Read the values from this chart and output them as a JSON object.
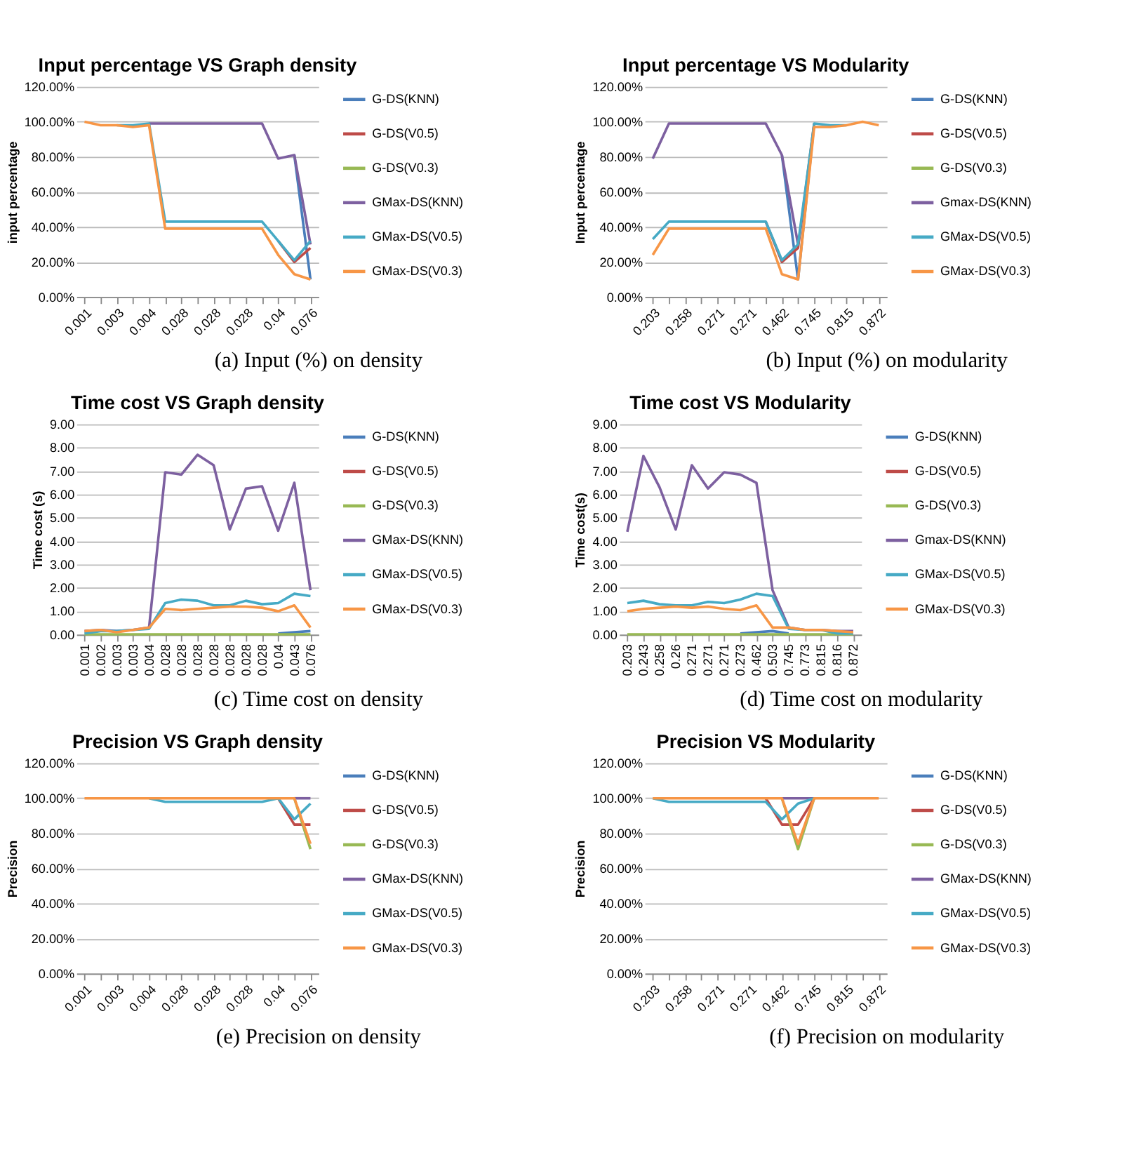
{
  "chart_data": [
    {
      "type": "line",
      "title": "Input percentage VS Graph density",
      "ylabel": "input percentage",
      "annotations": [
        "(a) Input (%) on density"
      ],
      "categories": [
        "0.001",
        null,
        "0.003",
        null,
        "0.004",
        null,
        "0.028",
        null,
        "0.028",
        null,
        "0.028",
        null,
        "0.04",
        null,
        "0.076"
      ],
      "ylim": [
        0,
        120
      ],
      "yticks": [
        {
          "value": 0,
          "label": "0.00%"
        },
        {
          "value": 20,
          "label": "20.00%"
        },
        {
          "value": 40,
          "label": "40.00%"
        },
        {
          "value": 60,
          "label": "60.00%"
        },
        {
          "value": 80,
          "label": "80.00%"
        },
        {
          "value": 100,
          "label": "100.00%"
        },
        {
          "value": 120,
          "label": "120.00%"
        }
      ],
      "grid": "y",
      "legend": "right",
      "marker": "none",
      "series": [
        {
          "name": "G-DS(KNN)",
          "color": "#4a7ebb",
          "values": [
            null,
            null,
            null,
            null,
            null,
            null,
            null,
            null,
            null,
            null,
            null,
            null,
            null,
            81,
            10
          ]
        },
        {
          "name": "G-DS(V0.5)",
          "color": "#be4b48",
          "values": [
            null,
            null,
            null,
            null,
            null,
            null,
            null,
            null,
            null,
            null,
            null,
            null,
            32,
            20,
            28
          ]
        },
        {
          "name": "G-DS(V0.3)",
          "color": "#98b954",
          "values": [
            null,
            null,
            null,
            null,
            null,
            null,
            null,
            null,
            null,
            null,
            null,
            null,
            null,
            null,
            null
          ]
        },
        {
          "name": "GMax-DS(KNN)",
          "color": "#7d60a0",
          "values": [
            null,
            null,
            null,
            null,
            99,
            99,
            99,
            99,
            99,
            99,
            99,
            99,
            79,
            81,
            30
          ]
        },
        {
          "name": "GMax-DS(V0.5)",
          "color": "#46aac5",
          "values": [
            null,
            null,
            98,
            98,
            99,
            43,
            43,
            43,
            43,
            43,
            43,
            43,
            32,
            21,
            32
          ]
        },
        {
          "name": "GMax-DS(V0.3)",
          "color": "#f79646",
          "values": [
            100,
            98,
            98,
            97,
            98,
            39,
            39,
            39,
            39,
            39,
            39,
            39,
            24,
            13,
            10
          ]
        }
      ]
    },
    {
      "type": "line",
      "title": "Input percentage VS Modularity",
      "ylabel": "Input percentage",
      "annotations": [
        "(b) Input (%) on modularity"
      ],
      "categories": [
        "0.203",
        null,
        "0.258",
        null,
        "0.271",
        null,
        "0.271",
        null,
        "0.462",
        null,
        "0.745",
        null,
        "0.815",
        null,
        "0.872"
      ],
      "ylim": [
        0,
        120
      ],
      "yticks": [
        {
          "value": 0,
          "label": "0.00%"
        },
        {
          "value": 20,
          "label": "20.00%"
        },
        {
          "value": 40,
          "label": "40.00%"
        },
        {
          "value": 60,
          "label": "60.00%"
        },
        {
          "value": 80,
          "label": "80.00%"
        },
        {
          "value": 100,
          "label": "100.00%"
        },
        {
          "value": 120,
          "label": "120.00%"
        }
      ],
      "grid": "y",
      "legend": "right",
      "marker": "none",
      "series": [
        {
          "name": "G-DS(KNN)",
          "color": "#4a7ebb",
          "values": [
            null,
            null,
            null,
            null,
            null,
            null,
            null,
            null,
            81,
            10,
            99,
            null,
            null,
            null,
            null
          ]
        },
        {
          "name": "G-DS(V0.5)",
          "color": "#be4b48",
          "values": [
            null,
            null,
            null,
            null,
            null,
            null,
            null,
            43,
            20,
            28,
            99,
            null,
            null,
            null,
            null
          ]
        },
        {
          "name": "G-DS(V0.3)",
          "color": "#98b954",
          "values": [
            null,
            null,
            null,
            null,
            null,
            null,
            null,
            null,
            null,
            null,
            null,
            null,
            null,
            null,
            null
          ]
        },
        {
          "name": "Gmax-DS(KNN)",
          "color": "#7d60a0",
          "values": [
            79,
            99,
            99,
            99,
            99,
            99,
            99,
            99,
            81,
            30,
            null,
            null,
            null,
            null,
            null
          ]
        },
        {
          "name": "GMax-DS(V0.5)",
          "color": "#46aac5",
          "values": [
            33,
            43,
            43,
            43,
            43,
            43,
            43,
            43,
            21,
            30,
            99,
            98,
            98,
            null,
            null
          ]
        },
        {
          "name": "GMax-DS(V0.3)",
          "color": "#f79646",
          "values": [
            24,
            39,
            39,
            39,
            39,
            39,
            39,
            39,
            13,
            10,
            97,
            97,
            98,
            100,
            98
          ]
        }
      ]
    },
    {
      "type": "line",
      "title": "Time cost VS Graph density",
      "ylabel": "Time cost (s)",
      "annotations": [
        "(c) Time cost on density"
      ],
      "categories": [
        "0.001",
        "0.002",
        "0.003",
        "0.003",
        "0.004",
        "0.028",
        "0.028",
        "0.028",
        "0.028",
        "0.028",
        "0.028",
        "0.028",
        "0.04",
        "0.043",
        "0.076"
      ],
      "ylim": [
        0,
        9
      ],
      "yticks": [
        {
          "value": 0,
          "label": "0.00"
        },
        {
          "value": 1,
          "label": "1.00"
        },
        {
          "value": 2,
          "label": "2.00"
        },
        {
          "value": 3,
          "label": "3.00"
        },
        {
          "value": 4,
          "label": "4.00"
        },
        {
          "value": 5,
          "label": "5.00"
        },
        {
          "value": 6,
          "label": "6.00"
        },
        {
          "value": 7,
          "label": "7.00"
        },
        {
          "value": 8,
          "label": "8.00"
        },
        {
          "value": 9,
          "label": "9.00"
        }
      ],
      "grid": "y",
      "legend": "right",
      "marker": "none",
      "series": [
        {
          "name": "G-DS(KNN)",
          "color": "#4a7ebb",
          "values": [
            null,
            null,
            null,
            null,
            null,
            null,
            null,
            null,
            null,
            null,
            null,
            null,
            0.05,
            0.1,
            0.15
          ]
        },
        {
          "name": "G-DS(V0.5)",
          "color": "#be4b48",
          "values": [
            null,
            null,
            null,
            null,
            null,
            null,
            null,
            null,
            null,
            null,
            null,
            null,
            null,
            null,
            null
          ]
        },
        {
          "name": "G-DS(V0.3)",
          "color": "#98b954",
          "values": [
            0.01,
            0.01,
            0.01,
            0.01,
            0.01,
            0.01,
            0.01,
            0.01,
            0.01,
            0.01,
            0.01,
            0.01,
            0.01,
            0.01,
            0.01
          ]
        },
        {
          "name": "GMax-DS(KNN)",
          "color": "#7d60a0",
          "values": [
            0.15,
            0.2,
            0.15,
            0.2,
            0.3,
            6.95,
            6.85,
            7.7,
            7.25,
            4.5,
            6.25,
            6.35,
            4.45,
            6.5,
            1.9
          ]
        },
        {
          "name": "GMax-DS(V0.5)",
          "color": "#46aac5",
          "values": [
            0.05,
            0.15,
            0.15,
            0.2,
            0.25,
            1.35,
            1.5,
            1.45,
            1.25,
            1.25,
            1.45,
            1.3,
            1.35,
            1.75,
            1.65
          ]
        },
        {
          "name": "GMax-DS(V0.3)",
          "color": "#f79646",
          "values": [
            0.15,
            0.2,
            0.1,
            0.2,
            0.3,
            1.1,
            1.05,
            1.1,
            1.15,
            1.2,
            1.2,
            1.15,
            1.0,
            1.25,
            0.3
          ]
        }
      ]
    },
    {
      "type": "line",
      "title": "Time cost VS Modularity",
      "ylabel": "Time cost(s)",
      "annotations": [
        "(d) Time cost on modularity"
      ],
      "categories": [
        "0.203",
        "0.243",
        "0.258",
        "0.26",
        "0.271",
        "0.271",
        "0.271",
        "0.273",
        "0.462",
        "0.503",
        "0.745",
        "0.773",
        "0.815",
        "0.816",
        "0.872"
      ],
      "ylim": [
        0,
        9
      ],
      "yticks": [
        {
          "value": 0,
          "label": "0.00"
        },
        {
          "value": 1,
          "label": "1.00"
        },
        {
          "value": 2,
          "label": "2.00"
        },
        {
          "value": 3,
          "label": "3.00"
        },
        {
          "value": 4,
          "label": "4.00"
        },
        {
          "value": 5,
          "label": "5.00"
        },
        {
          "value": 6,
          "label": "6.00"
        },
        {
          "value": 7,
          "label": "7.00"
        },
        {
          "value": 8,
          "label": "8.00"
        },
        {
          "value": 9,
          "label": "9.00"
        }
      ],
      "grid": "y",
      "legend": "right",
      "marker": "none",
      "series": [
        {
          "name": "G-DS(KNN)",
          "color": "#4a7ebb",
          "values": [
            null,
            null,
            null,
            null,
            null,
            null,
            null,
            0.05,
            0.1,
            0.15,
            0.05,
            null,
            null,
            null,
            null
          ]
        },
        {
          "name": "G-DS(V0.5)",
          "color": "#be4b48",
          "values": [
            null,
            null,
            null,
            null,
            null,
            null,
            null,
            null,
            null,
            null,
            null,
            null,
            null,
            null,
            null
          ]
        },
        {
          "name": "G-DS(V0.3)",
          "color": "#98b954",
          "values": [
            0.01,
            0.01,
            0.01,
            0.01,
            0.01,
            0.01,
            0.01,
            0.01,
            0.01,
            0.01,
            0.01,
            0.01,
            0.01,
            0.01,
            0.01
          ]
        },
        {
          "name": "Gmax-DS(KNN)",
          "color": "#7d60a0",
          "values": [
            4.4,
            7.65,
            6.3,
            4.5,
            7.25,
            6.25,
            6.95,
            6.85,
            6.5,
            1.9,
            0.3,
            0.2,
            0.2,
            0.15,
            0.15
          ]
        },
        {
          "name": "GMax-DS(V0.5)",
          "color": "#46aac5",
          "values": [
            1.35,
            1.45,
            1.3,
            1.25,
            1.25,
            1.4,
            1.35,
            1.5,
            1.75,
            1.65,
            0.25,
            0.2,
            0.2,
            0.05,
            0.05
          ]
        },
        {
          "name": "GMax-DS(V0.3)",
          "color": "#f79646",
          "values": [
            1.0,
            1.1,
            1.15,
            1.2,
            1.15,
            1.2,
            1.1,
            1.05,
            1.25,
            0.3,
            0.3,
            0.2,
            0.2,
            0.15,
            0.1
          ]
        }
      ]
    },
    {
      "type": "line",
      "title": "Precision VS Graph density",
      "ylabel": "Precision",
      "annotations": [
        "(e) Precision on density"
      ],
      "categories": [
        "0.001",
        null,
        "0.003",
        null,
        "0.004",
        null,
        "0.028",
        null,
        "0.028",
        null,
        "0.028",
        null,
        "0.04",
        null,
        "0.076"
      ],
      "ylim": [
        0,
        120
      ],
      "yticks": [
        {
          "value": 0,
          "label": "0.00%"
        },
        {
          "value": 20,
          "label": "20.00%"
        },
        {
          "value": 40,
          "label": "40.00%"
        },
        {
          "value": 60,
          "label": "60.00%"
        },
        {
          "value": 80,
          "label": "80.00%"
        },
        {
          "value": 100,
          "label": "100.00%"
        },
        {
          "value": 120,
          "label": "120.00%"
        }
      ],
      "grid": "y",
      "legend": "right",
      "marker": "none",
      "series": [
        {
          "name": "G-DS(KNN)",
          "color": "#4a7ebb",
          "values": [
            null,
            null,
            null,
            null,
            null,
            null,
            null,
            null,
            null,
            null,
            null,
            null,
            null,
            null,
            null
          ]
        },
        {
          "name": "G-DS(V0.5)",
          "color": "#be4b48",
          "values": [
            null,
            null,
            null,
            null,
            null,
            null,
            null,
            null,
            null,
            null,
            null,
            null,
            100,
            85,
            85
          ]
        },
        {
          "name": "G-DS(V0.3)",
          "color": "#98b954",
          "values": [
            null,
            null,
            null,
            null,
            null,
            null,
            null,
            null,
            null,
            null,
            null,
            null,
            null,
            100,
            71
          ]
        },
        {
          "name": "GMax-DS(KNN)",
          "color": "#7d60a0",
          "values": [
            null,
            null,
            null,
            null,
            null,
            null,
            null,
            null,
            null,
            null,
            null,
            null,
            null,
            100,
            100
          ]
        },
        {
          "name": "GMax-DS(V0.5)",
          "color": "#46aac5",
          "values": [
            null,
            null,
            null,
            null,
            100,
            98,
            98,
            98,
            98,
            98,
            98,
            98,
            100,
            88,
            97
          ]
        },
        {
          "name": "GMax-DS(V0.3)",
          "color": "#f79646",
          "values": [
            100,
            100,
            100,
            100,
            100,
            100,
            100,
            100,
            100,
            100,
            100,
            100,
            100,
            100,
            74
          ]
        }
      ]
    },
    {
      "type": "line",
      "title": "Precision VS Modularity",
      "ylabel": "Precision",
      "annotations": [
        "(f) Precision on modularity"
      ],
      "categories": [
        "0.203",
        null,
        "0.258",
        null,
        "0.271",
        null,
        "0.271",
        null,
        "0.462",
        null,
        "0.745",
        null,
        "0.815",
        null,
        "0.872"
      ],
      "ylim": [
        0,
        120
      ],
      "yticks": [
        {
          "value": 0,
          "label": "0.00%"
        },
        {
          "value": 20,
          "label": "20.00%"
        },
        {
          "value": 40,
          "label": "40.00%"
        },
        {
          "value": 60,
          "label": "60.00%"
        },
        {
          "value": 80,
          "label": "80.00%"
        },
        {
          "value": 100,
          "label": "100.00%"
        },
        {
          "value": 120,
          "label": "120.00%"
        }
      ],
      "grid": "y",
      "legend": "right",
      "marker": "none",
      "series": [
        {
          "name": "G-DS(KNN)",
          "color": "#4a7ebb",
          "values": [
            null,
            null,
            null,
            null,
            null,
            null,
            null,
            null,
            null,
            null,
            null,
            null,
            null,
            null,
            null
          ]
        },
        {
          "name": "G-DS(V0.5)",
          "color": "#be4b48",
          "values": [
            null,
            null,
            null,
            null,
            null,
            null,
            null,
            100,
            85,
            85,
            100,
            null,
            null,
            null,
            null
          ]
        },
        {
          "name": "G-DS(V0.3)",
          "color": "#98b954",
          "values": [
            null,
            null,
            null,
            null,
            null,
            null,
            null,
            null,
            100,
            71,
            100,
            null,
            null,
            null,
            null
          ]
        },
        {
          "name": "GMax-DS(KNN)",
          "color": "#7d60a0",
          "values": [
            null,
            null,
            null,
            null,
            null,
            null,
            null,
            null,
            100,
            100,
            100,
            null,
            null,
            null,
            null
          ]
        },
        {
          "name": "GMax-DS(V0.5)",
          "color": "#46aac5",
          "values": [
            100,
            98,
            98,
            98,
            98,
            98,
            98,
            98,
            88,
            97,
            100,
            null,
            null,
            null,
            null
          ]
        },
        {
          "name": "GMax-DS(V0.3)",
          "color": "#f79646",
          "values": [
            100,
            100,
            100,
            100,
            100,
            100,
            100,
            100,
            100,
            74,
            100,
            100,
            100,
            100,
            100
          ]
        }
      ]
    }
  ]
}
